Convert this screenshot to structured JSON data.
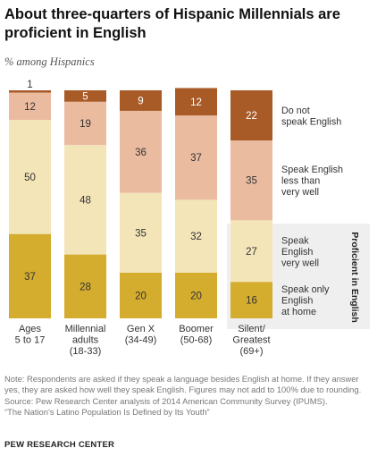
{
  "title": "About three-quarters  of Hispanic Millennials are proficient in English",
  "subtitle": "% among Hispanics",
  "note": "Note: Respondents are asked if they speak a language besides English at home. If they answer yes, they are asked how well they speak English. Figures may not add to 100% due to rounding.",
  "source_lines": [
    "Source: Pew Research Center analysis of 2014 American Community Survey (IPUMS).",
    "“The Nation’s Latino Population Is Defined by Its Youth”"
  ],
  "footer": "PEW RESEARCH CENTER",
  "chart_data": {
    "type": "bar",
    "stacked": true,
    "orientation": "vertical",
    "categories": [
      [
        "Ages",
        "5 to 17"
      ],
      [
        "Millennial",
        "adults",
        "(18-33)"
      ],
      [
        "Gen X",
        "(34-49)"
      ],
      [
        "Boomer",
        "(50-68)"
      ],
      [
        "Silent/",
        "Greatest",
        "(69+)"
      ]
    ],
    "series": [
      {
        "name": "Speak only English at home",
        "label_lines": [
          "Speak only",
          "English",
          "at home"
        ],
        "color": "#d4ac2e",
        "values": [
          37,
          28,
          20,
          20,
          16
        ]
      },
      {
        "name": "Speak English very well",
        "label_lines": [
          "Speak",
          "English",
          "very well"
        ],
        "color": "#f3e5b8",
        "values": [
          50,
          48,
          35,
          32,
          27
        ]
      },
      {
        "name": "Speak English less than very well",
        "label_lines": [
          "Speak English",
          "less than",
          "very well"
        ],
        "color": "#ebbba0",
        "values": [
          12,
          19,
          36,
          37,
          35
        ]
      },
      {
        "name": "Do not speak English",
        "label_lines": [
          "Do not",
          "speak English"
        ],
        "color": "#a85b27",
        "values": [
          1,
          5,
          9,
          12,
          22
        ]
      }
    ],
    "bracket_label": "Proficient in English",
    "highlight_color": "#efefef"
  }
}
